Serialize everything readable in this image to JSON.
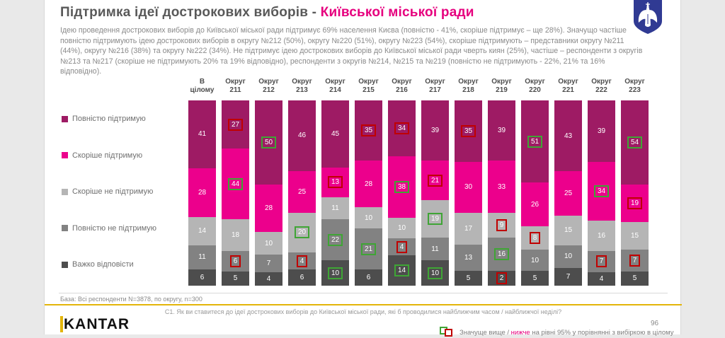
{
  "header": {
    "title_prefix": "Підтримка ідеї дострокових виборів - ",
    "title_accent": "Київської міської ради",
    "emblem": "kyiv-coat-of-arms"
  },
  "intro": "Ідею проведення дострокових виборів до Київської міської ради підтримує 69% населення Києва (повністю - 41%, скоріше підтримує – ще 28%). Значущо частіше повністю підтримують ідею дострокових виборів в округу №212 (50%), округу №220 (51%), округу №223 (54%), скоріше підтримують – представники округу №211 (44%), округу №216 (38%) та округу №222 (34%). Не підтримує ідею дострокових виборів до Київської міської ради чверть киян (25%), частіше – респонденти з округів №213 та №217 (скоріше не підтримують 20% та 19% відповідно), респонденти з округів №214, №215 та №219 (повністю не підтримують - 22%, 21% та 16% відповідно).",
  "chart_data": {
    "type": "bar",
    "subtype": "stacked-100",
    "legend_position": "left",
    "series_labels": [
      "Повністю підтримую",
      "Скоріше підтримую",
      "Скоріше не підтримую",
      "Повністю не підтримую",
      "Важко відповісти"
    ],
    "series_colors": [
      "#9e1b64",
      "#ec008c",
      "#b5b5b5",
      "#828282",
      "#4d4d4d"
    ],
    "annotation_colors": {
      "high": "#3fa535",
      "low": "#c00000"
    },
    "categories": [
      "В цілому",
      "Округ 211",
      "Округ 212",
      "Округ 213",
      "Округ 214",
      "Округ 215",
      "Округ 216",
      "Округ 217",
      "Округ 218",
      "Округ 219",
      "Округ 220",
      "Округ 221",
      "Округ 222",
      "Округ 223"
    ],
    "columns": [
      {
        "label": "В цілому",
        "values": [
          41,
          28,
          14,
          11,
          6
        ],
        "flags": [
          null,
          null,
          null,
          null,
          null
        ]
      },
      {
        "label": "Округ 211",
        "values": [
          27,
          44,
          18,
          6,
          5
        ],
        "flags": [
          "low",
          "high",
          null,
          "low",
          null
        ]
      },
      {
        "label": "Округ 212",
        "values": [
          50,
          28,
          10,
          7,
          4
        ],
        "flags": [
          "high",
          null,
          null,
          null,
          null
        ]
      },
      {
        "label": "Округ 213",
        "values": [
          46,
          25,
          20,
          4,
          6
        ],
        "flags": [
          null,
          null,
          "high",
          "low",
          null
        ]
      },
      {
        "label": "Округ 214",
        "values": [
          45,
          13,
          11,
          22,
          10
        ],
        "flags": [
          null,
          "low",
          null,
          "high",
          "high"
        ]
      },
      {
        "label": "Округ 215",
        "values": [
          35,
          28,
          10,
          21,
          6
        ],
        "flags": [
          "low",
          null,
          null,
          "high",
          null
        ]
      },
      {
        "label": "Округ 216",
        "values": [
          34,
          38,
          10,
          4,
          14
        ],
        "flags": [
          "low",
          "high",
          null,
          "low",
          "high"
        ]
      },
      {
        "label": "Округ 217",
        "values": [
          39,
          21,
          19,
          11,
          10
        ],
        "flags": [
          null,
          "low",
          "high",
          null,
          "high"
        ]
      },
      {
        "label": "Округ 218",
        "values": [
          35,
          30,
          17,
          13,
          5
        ],
        "flags": [
          "low",
          null,
          null,
          null,
          null
        ]
      },
      {
        "label": "Округ 219",
        "values": [
          39,
          33,
          9,
          16,
          2
        ],
        "flags": [
          null,
          null,
          "low",
          "high",
          "low"
        ]
      },
      {
        "label": "Округ 220",
        "values": [
          51,
          26,
          8,
          10,
          5
        ],
        "flags": [
          "high",
          null,
          "low",
          null,
          null
        ]
      },
      {
        "label": "Округ 221",
        "values": [
          43,
          25,
          15,
          10,
          7
        ],
        "flags": [
          null,
          null,
          null,
          null,
          null
        ]
      },
      {
        "label": "Округ 222",
        "values": [
          39,
          34,
          16,
          7,
          4
        ],
        "flags": [
          null,
          "high",
          null,
          "low",
          null
        ]
      },
      {
        "label": "Округ 223",
        "values": [
          54,
          19,
          15,
          7,
          5
        ],
        "flags": [
          "high",
          "low",
          null,
          "low",
          null
        ]
      }
    ]
  },
  "footer": {
    "base_note": "База: Всі респонденти N=3878, по округу, n=300",
    "question_note": "C1. Як ви ставитеся до ідеї дострокових виборів до Київської міської ради, які б проводилися найближчим часом / найближчої неділі?",
    "brand": "KANTAR",
    "page_number": "96",
    "significance_prefix": "Значуще вище / ",
    "significance_accent": "нижче",
    "significance_suffix": " на рівні 95% у порівнянні з вибіркою в цілому"
  }
}
